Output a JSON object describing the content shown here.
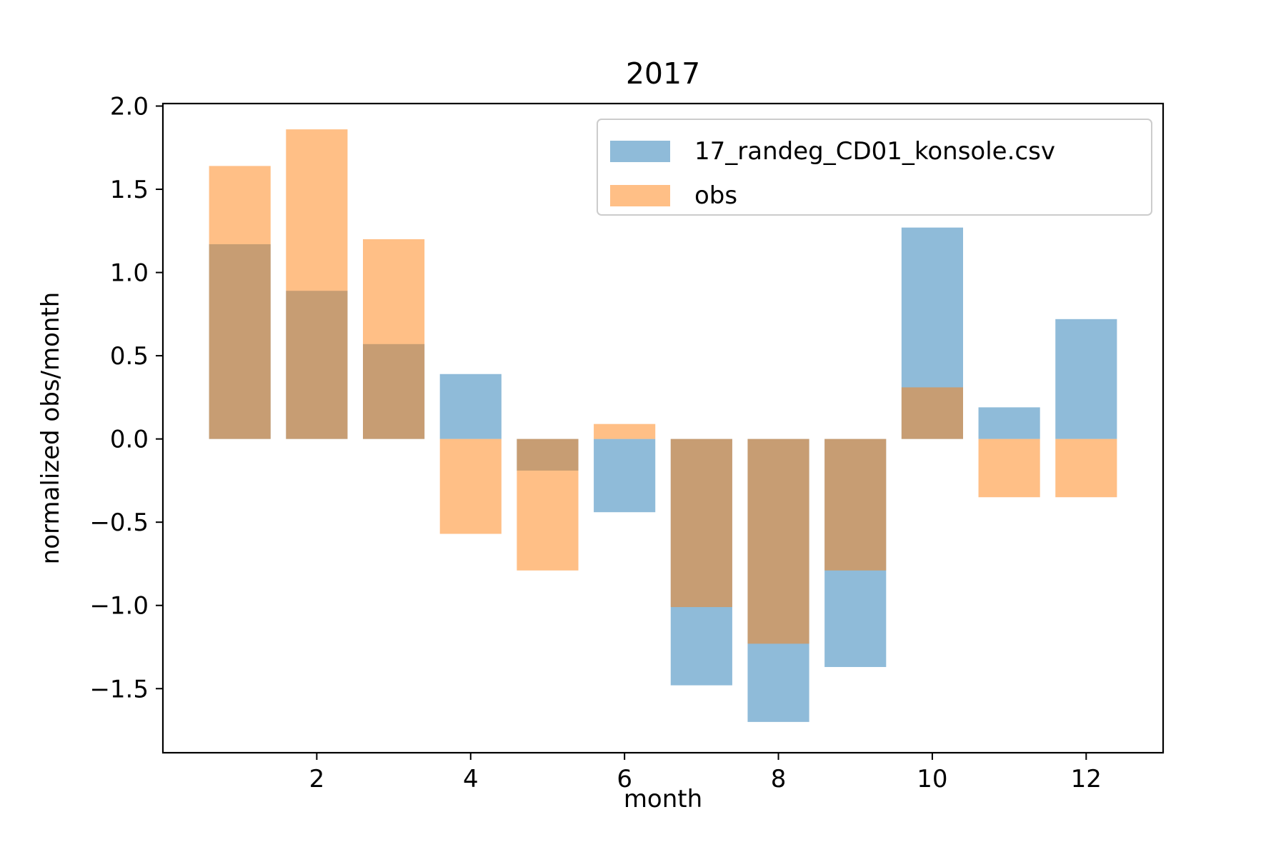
{
  "chart_data": {
    "type": "bar",
    "title": "2017",
    "xlabel": "month",
    "ylabel": "normalized obs/month",
    "x": [
      1,
      2,
      3,
      4,
      5,
      6,
      7,
      8,
      9,
      10,
      11,
      12
    ],
    "series": [
      {
        "name": "17_randeg_CD01_konsole.csv",
        "color": "#1f77b4",
        "opacity": 0.5,
        "values": [
          1.17,
          0.89,
          0.57,
          0.39,
          -0.19,
          -0.44,
          -1.48,
          -1.7,
          -1.37,
          1.27,
          0.19,
          0.72
        ]
      },
      {
        "name": "obs",
        "color": "#ff7f0e",
        "opacity": 0.5,
        "values": [
          1.64,
          1.86,
          1.2,
          -0.57,
          -0.79,
          0.09,
          -1.01,
          -1.23,
          -0.79,
          0.31,
          -0.35,
          -0.35
        ]
      }
    ],
    "xlim": [
      0.0,
      13.0
    ],
    "ylim": [
      -1.885,
      2.015
    ],
    "xticks": [
      2,
      4,
      6,
      8,
      10,
      12
    ],
    "xtick_labels": [
      "2",
      "4",
      "6",
      "8",
      "10",
      "12"
    ],
    "yticks": [
      -1.5,
      -1.0,
      -0.5,
      0.0,
      0.5,
      1.0,
      1.5,
      2.0
    ],
    "ytick_labels": [
      "−1.5",
      "−1.0",
      "−0.5",
      "0.0",
      "0.5",
      "1.0",
      "1.5",
      "2.0"
    ],
    "bar_width": 0.8,
    "grid": false,
    "legend_position": "top-right"
  }
}
